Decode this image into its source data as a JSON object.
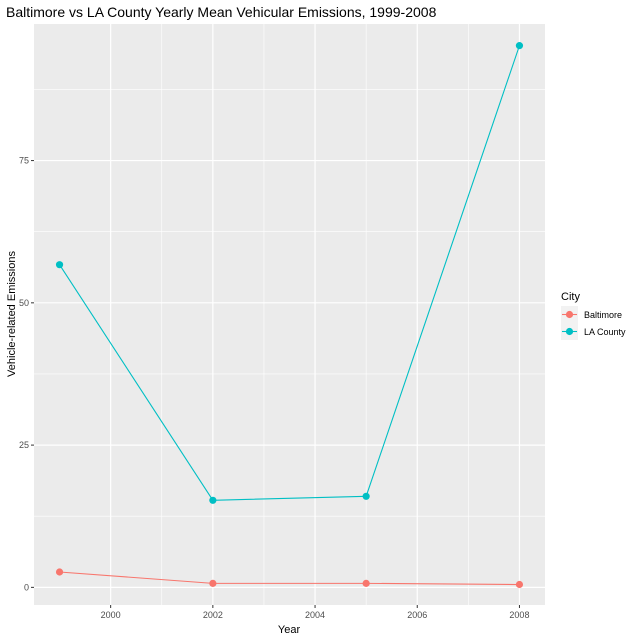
{
  "chart_data": {
    "type": "line",
    "title": "Baltimore vs LA County Yearly Mean Vehicular Emissions, 1999-2008",
    "xlabel": "Year",
    "ylabel": "Vehicle-related Emissions",
    "x": [
      1999,
      2002,
      2005,
      2008
    ],
    "xlim": [
      1998.5,
      2008.5
    ],
    "ylim": [
      -3.1,
      99.0
    ],
    "x_ticks": [
      2000,
      2002,
      2004,
      2006,
      2008
    ],
    "y_ticks": [
      0,
      25,
      50,
      75
    ],
    "grid": true,
    "panel_background": "#ebebeb",
    "legend": {
      "title": "City",
      "position": "right"
    },
    "series": [
      {
        "name": "Baltimore",
        "color": "#f8766d",
        "values": [
          2.7,
          0.7,
          0.7,
          0.5
        ]
      },
      {
        "name": "LA County",
        "color": "#00bfc4",
        "values": [
          56.7,
          15.3,
          16.0,
          95.2
        ]
      }
    ]
  }
}
